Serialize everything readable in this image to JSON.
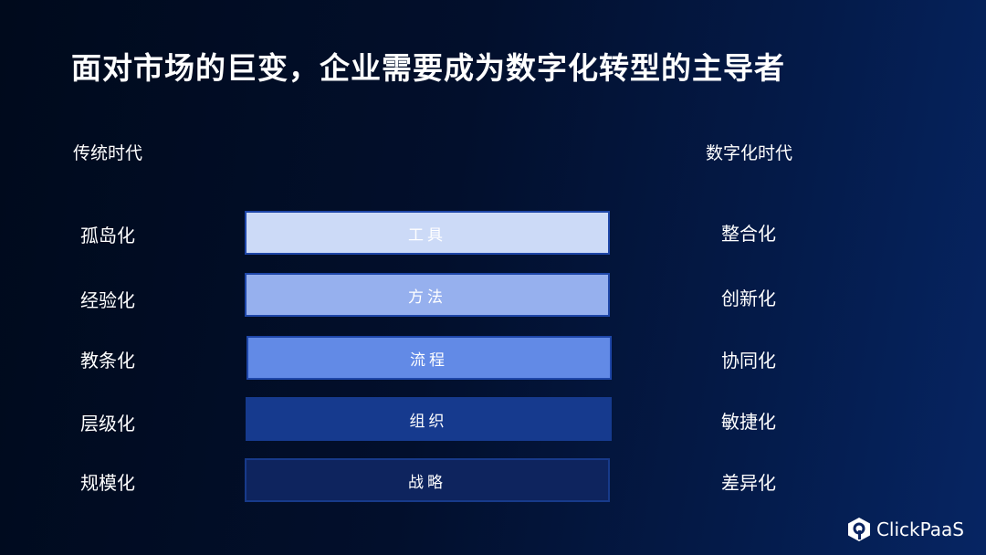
{
  "title": "面对市场的巨变，企业需要成为数字化转型的主导者",
  "left_header": "传统时代",
  "right_header": "数字化时代",
  "left_items": [
    "孤岛化",
    "经验化",
    "教条化",
    "层级化",
    "规模化"
  ],
  "right_items": [
    "整合化",
    "创新化",
    "协同化",
    "敏捷化",
    "差异化"
  ],
  "layers": [
    {
      "label": "工具",
      "color": "#ccdaf7"
    },
    {
      "label": "方法",
      "color": "#96b0ee"
    },
    {
      "label": "流程",
      "color": "#628ae6"
    },
    {
      "label": "组织",
      "color": "#163a8e"
    },
    {
      "label": "战略",
      "color": "#0e245e"
    }
  ],
  "logo": {
    "text": "ClickPaaS",
    "icon": "clickpaas-hexagon-icon"
  }
}
